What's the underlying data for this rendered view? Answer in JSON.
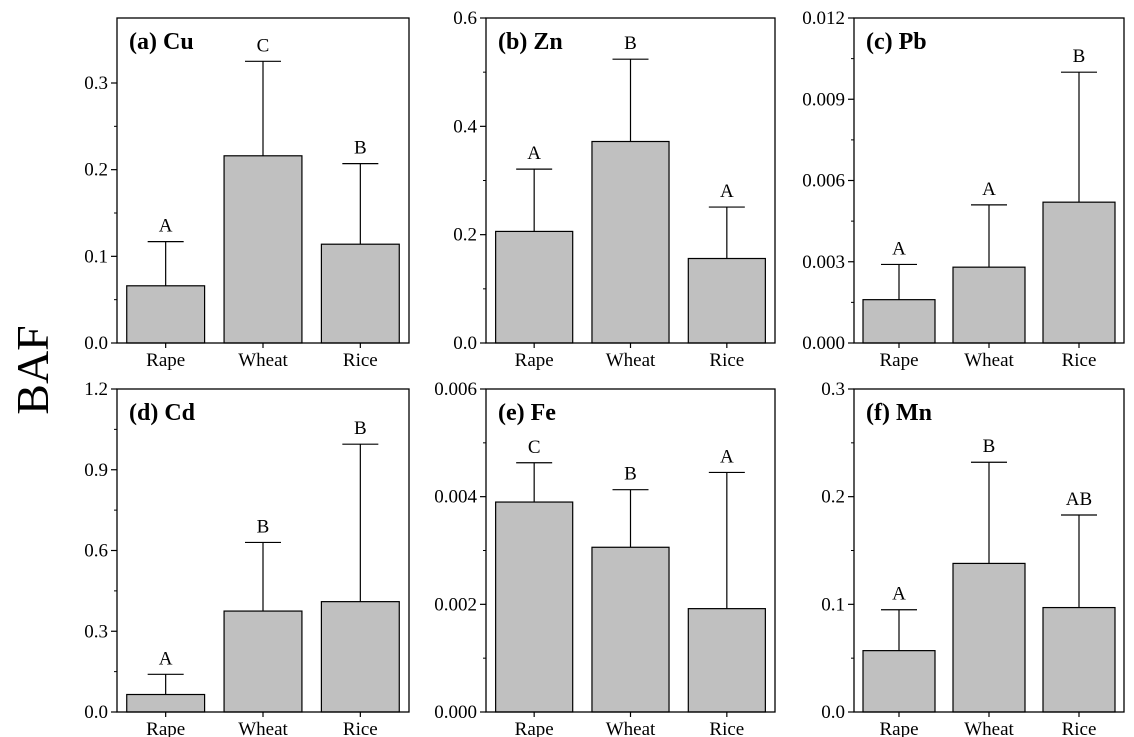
{
  "figure": {
    "ylabel": "BAF",
    "colors": {
      "bar_fill": "#c0c0c0",
      "stroke": "#000000"
    }
  },
  "chart_data": [
    {
      "type": "bar",
      "title": "(a) Cu",
      "categories": [
        "Rape",
        "Wheat",
        "Rice"
      ],
      "values": [
        0.066,
        0.216,
        0.114
      ],
      "error_upper": [
        0.117,
        0.325,
        0.207
      ],
      "letters": [
        "A",
        "C",
        "B"
      ],
      "ylim": [
        0,
        0.375
      ],
      "yticks": [
        0.0,
        0.1,
        0.2,
        0.3
      ],
      "ytick_labels": [
        "0.0",
        "0.1",
        "0.2",
        "0.3"
      ],
      "grid": false
    },
    {
      "type": "bar",
      "title": "(b) Zn",
      "categories": [
        "Rape",
        "Wheat",
        "Rice"
      ],
      "values": [
        0.206,
        0.372,
        0.156
      ],
      "error_upper": [
        0.321,
        0.524,
        0.251
      ],
      "letters": [
        "A",
        "B",
        "A"
      ],
      "ylim": [
        0,
        0.6
      ],
      "yticks": [
        0.0,
        0.2,
        0.4,
        0.6
      ],
      "ytick_labels": [
        "0.0",
        "0.2",
        "0.4",
        "0.6"
      ],
      "grid": false
    },
    {
      "type": "bar",
      "title": "(c) Pb",
      "categories": [
        "Rape",
        "Wheat",
        "Rice"
      ],
      "values": [
        0.0016,
        0.0028,
        0.0052
      ],
      "error_upper": [
        0.0029,
        0.0051,
        0.01
      ],
      "letters": [
        "A",
        "A",
        "B"
      ],
      "ylim": [
        0,
        0.012
      ],
      "yticks": [
        0.0,
        0.003,
        0.006,
        0.009,
        0.012
      ],
      "ytick_labels": [
        "0.000",
        "0.003",
        "0.006",
        "0.009",
        "0.012"
      ],
      "grid": false
    },
    {
      "type": "bar",
      "title": "(d) Cd",
      "categories": [
        "Rape",
        "Wheat",
        "Rice"
      ],
      "values": [
        0.065,
        0.375,
        0.41
      ],
      "error_upper": [
        0.14,
        0.63,
        0.995
      ],
      "letters": [
        "A",
        "B",
        "B"
      ],
      "ylim": [
        0,
        1.2
      ],
      "yticks": [
        0.0,
        0.3,
        0.6,
        0.9,
        1.2
      ],
      "ytick_labels": [
        "0.0",
        "0.3",
        "0.6",
        "0.9",
        "1.2"
      ],
      "grid": false
    },
    {
      "type": "bar",
      "title": "(e) Fe",
      "categories": [
        "Rape",
        "Wheat",
        "Rice"
      ],
      "values": [
        0.0039,
        0.00306,
        0.00192
      ],
      "error_upper": [
        0.00463,
        0.00413,
        0.00445
      ],
      "letters": [
        "C",
        "B",
        "A"
      ],
      "ylim": [
        0,
        0.006
      ],
      "yticks": [
        0.0,
        0.002,
        0.004,
        0.006
      ],
      "ytick_labels": [
        "0.000",
        "0.002",
        "0.004",
        "0.006"
      ],
      "grid": false
    },
    {
      "type": "bar",
      "title": "(f) Mn",
      "categories": [
        "Rape",
        "Wheat",
        "Rice"
      ],
      "values": [
        0.057,
        0.138,
        0.097
      ],
      "error_upper": [
        0.095,
        0.232,
        0.183
      ],
      "letters": [
        "A",
        "B",
        "AB"
      ],
      "ylim": [
        0,
        0.3
      ],
      "yticks": [
        0.0,
        0.1,
        0.2,
        0.3
      ],
      "ytick_labels": [
        "0.0",
        "0.1",
        "0.2",
        "0.3"
      ],
      "grid": false
    }
  ]
}
